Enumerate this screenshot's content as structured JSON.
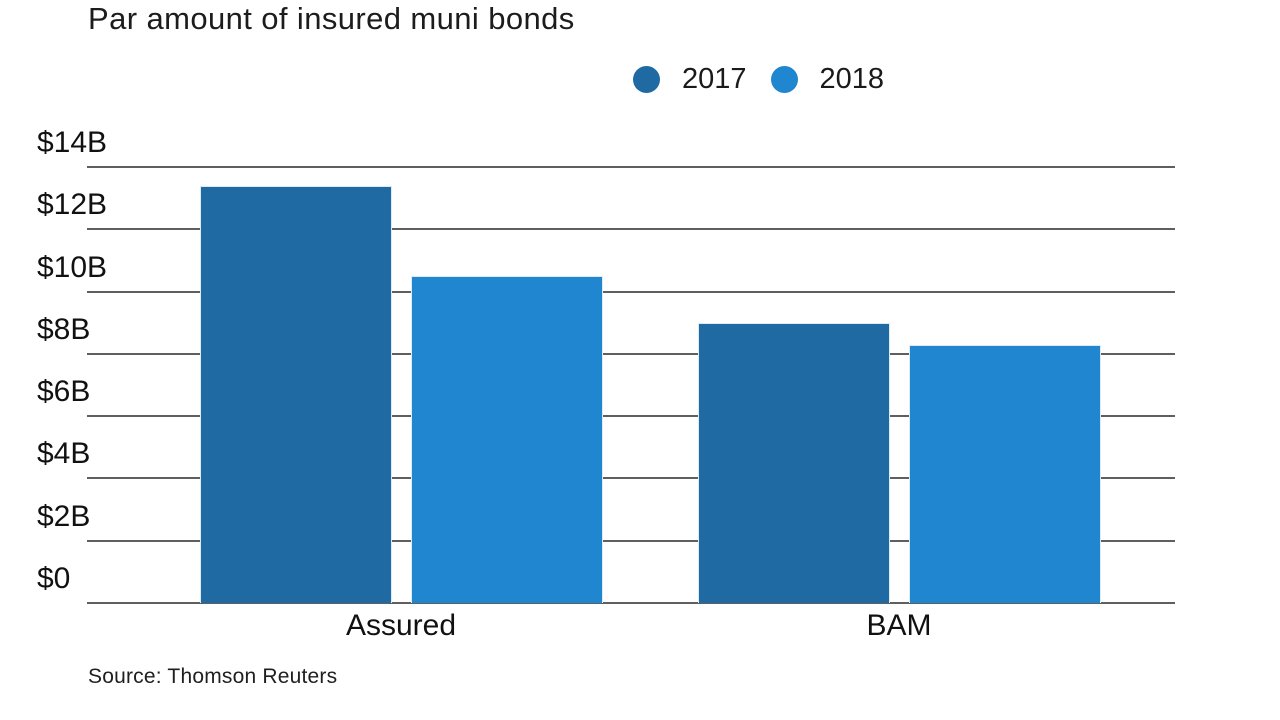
{
  "title": "Par amount of insured muni bonds",
  "source": "Source: Thomson Reuters",
  "colors": {
    "series_2017": "#1f6aa3",
    "series_2018": "#2086d0",
    "gridline": "#5f5f5f",
    "text": "#1a1a1a"
  },
  "chart_data": {
    "type": "bar",
    "title": "Par amount of insured muni bonds",
    "categories": [
      "Assured",
      "BAM"
    ],
    "series": [
      {
        "name": "2017",
        "color": "#1f6aa3",
        "values": [
          13.4,
          9.0
        ]
      },
      {
        "name": "2018",
        "color": "#2086d0",
        "values": [
          10.5,
          8.3
        ]
      }
    ],
    "xlabel": "",
    "ylabel": "",
    "ylim": [
      0,
      14
    ],
    "y_ticks": [
      {
        "label": "$14B",
        "value": 14
      },
      {
        "label": "$12B",
        "value": 12
      },
      {
        "label": "$10B",
        "value": 10
      },
      {
        "label": "$8B",
        "value": 8
      },
      {
        "label": "$6B",
        "value": 6
      },
      {
        "label": "$4B",
        "value": 4
      },
      {
        "label": "$2B",
        "value": 2
      },
      {
        "label": "$0",
        "value": 0
      }
    ],
    "grid": true,
    "legend_position": "top-center",
    "source": "Source: Thomson Reuters"
  }
}
